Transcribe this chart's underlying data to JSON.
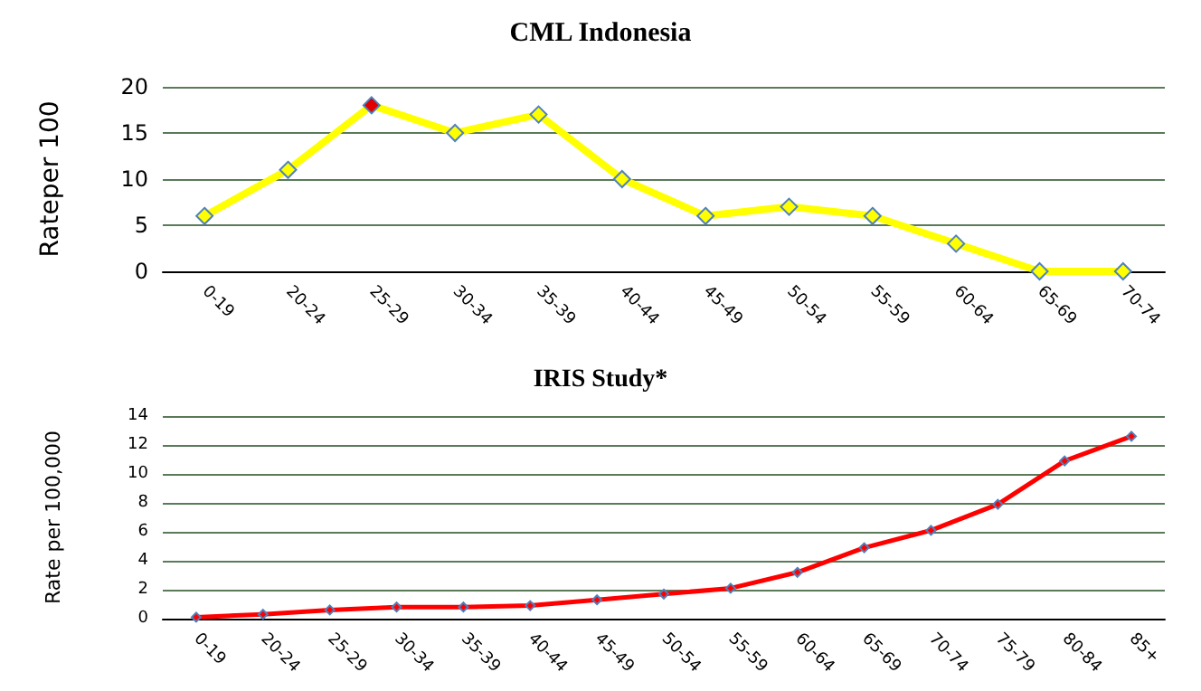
{
  "chart_data": [
    {
      "type": "line",
      "title": "CML Indonesia",
      "ylabel": "Rateper 100",
      "categories": [
        "0-19",
        "20-24",
        "25-29",
        "30-34",
        "35-39",
        "40-44",
        "45-49",
        "50-54",
        "55-59",
        "60-64",
        "65-69",
        "70-74"
      ],
      "series": [
        {
          "color": "#ffff00",
          "colors": [
            "#ffff00",
            "#ffff00",
            "#e00000",
            "#ffff00",
            "#ffff00",
            "#ffff00",
            "#ffff00",
            "#ffff00",
            "#ffff00",
            "#ffff00",
            "#ffff00",
            "#ffff00"
          ],
          "values": [
            6,
            11,
            18,
            15,
            17,
            10,
            6,
            7,
            6,
            3,
            0,
            0
          ]
        }
      ],
      "ylim": [
        0,
        20
      ],
      "yticks": [
        0,
        5,
        10,
        15,
        20
      ],
      "grid": "y",
      "marker": "diamond",
      "line_style": "solid"
    },
    {
      "type": "line",
      "title": "IRIS Study*",
      "ylabel": "Rate per 100,000",
      "categories": [
        "0-19",
        "20-24",
        "25-29",
        "30-34",
        "35-39",
        "40-44",
        "45-49",
        "50-54",
        "55-59",
        "60-64",
        "65-69",
        "70-74",
        "75-79",
        "80-84",
        "85+"
      ],
      "series": [
        {
          "color": "#ff0000",
          "values": [
            0.1,
            0.3,
            0.6,
            0.8,
            0.8,
            0.9,
            1.3,
            1.7,
            2.1,
            3.2,
            4.9,
            6.1,
            7.9,
            10.9,
            12.6
          ]
        }
      ],
      "ylim": [
        0,
        14
      ],
      "yticks": [
        0,
        2,
        4,
        6,
        8,
        10,
        12,
        14
      ],
      "grid": "y",
      "marker": "diamond",
      "line_style": "solid"
    }
  ]
}
